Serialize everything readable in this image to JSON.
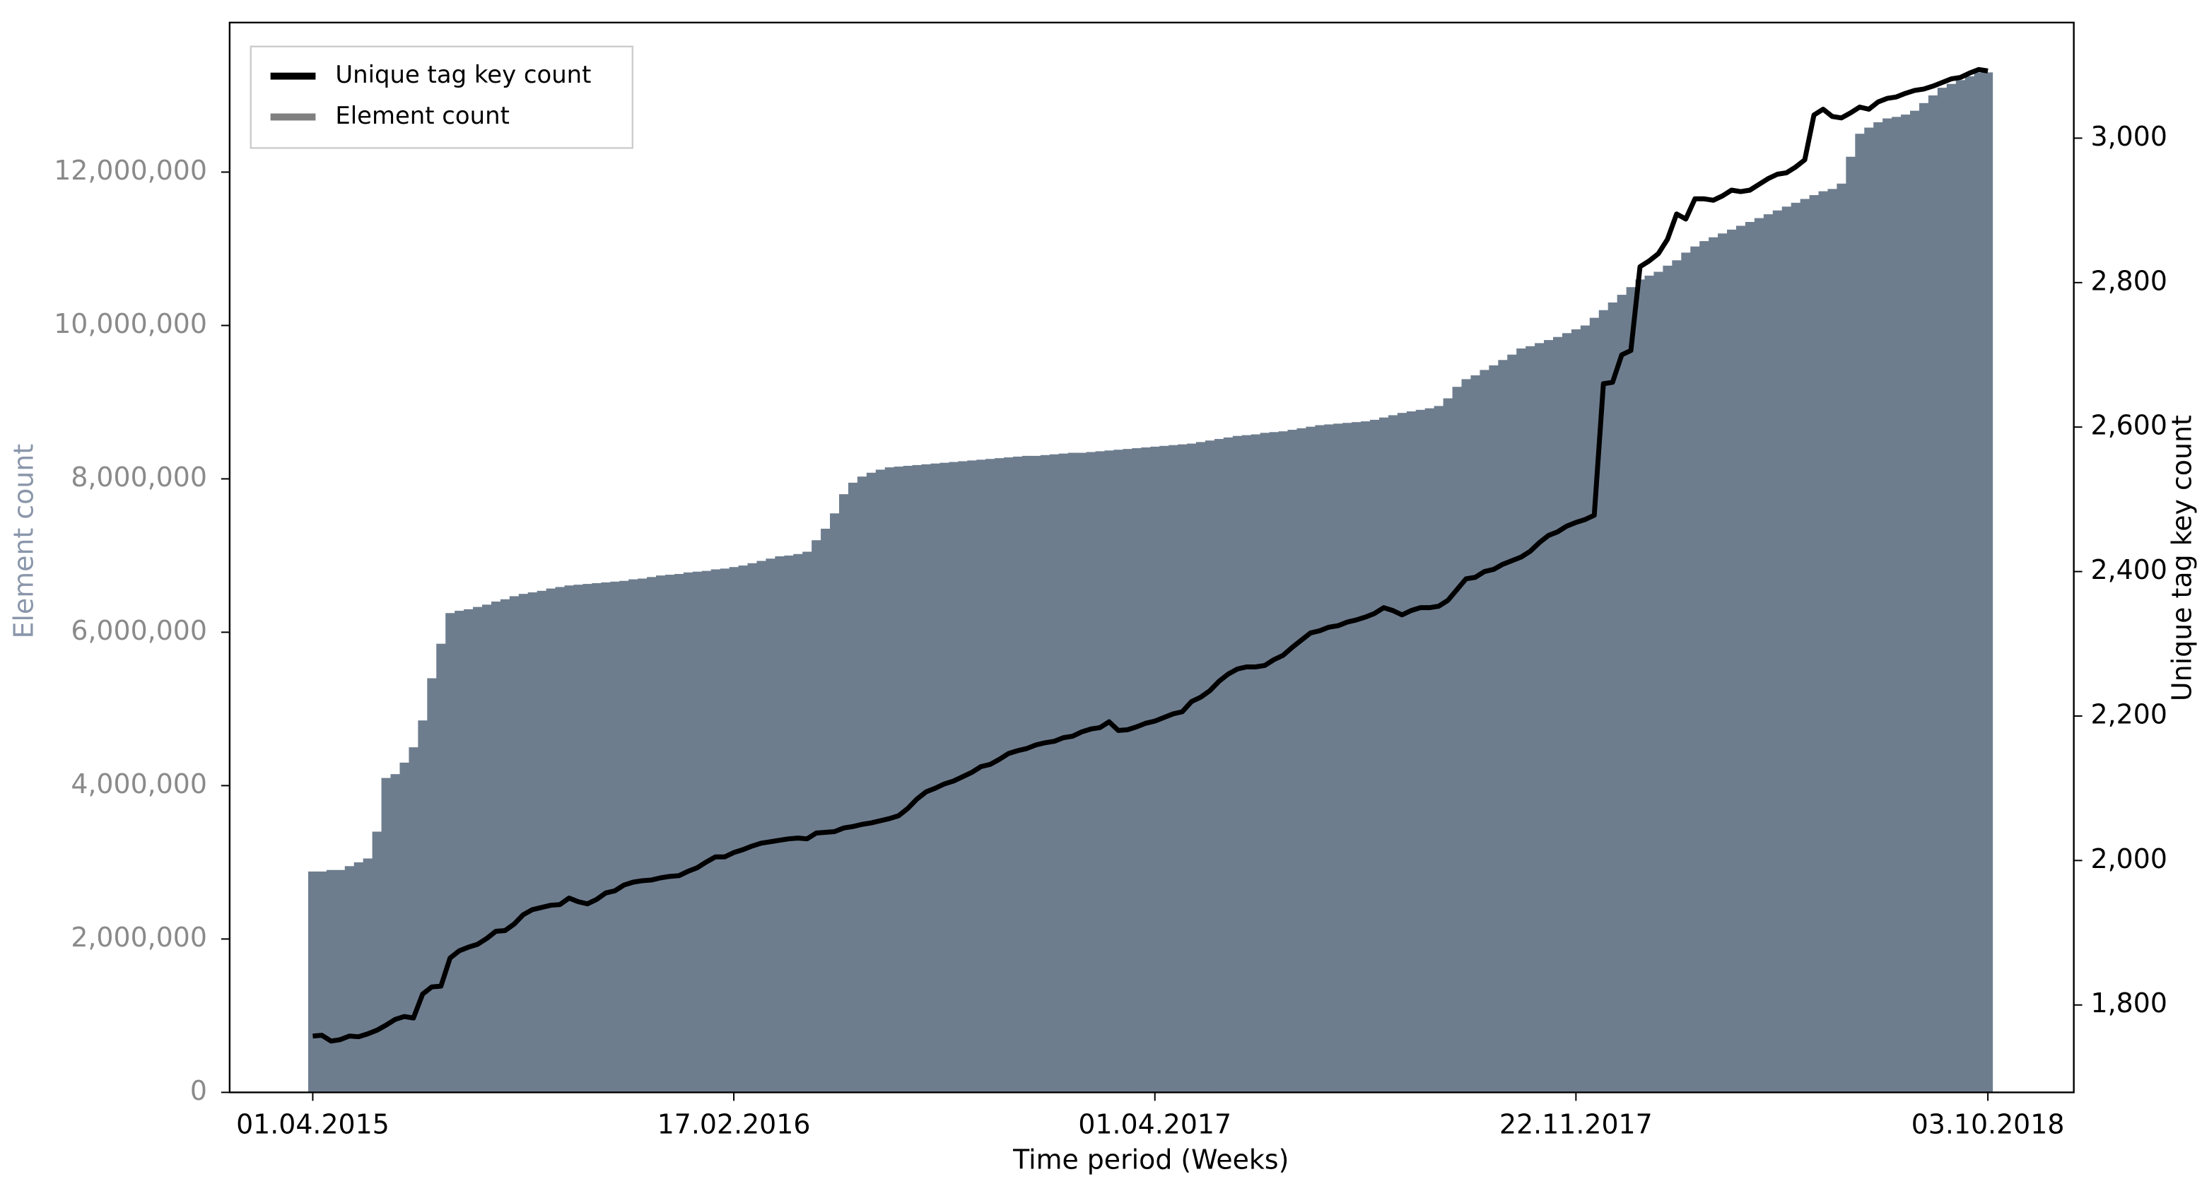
{
  "chart_data": {
    "type": "bar",
    "x_label": "Time period (Weeks)",
    "y_label": "Element count",
    "y2_label": "Unique tag key count",
    "categories": [
      "01.04.2015",
      null,
      null,
      null,
      null,
      null,
      null,
      null,
      null,
      null,
      null,
      null,
      null,
      null,
      null,
      null,
      null,
      null,
      null,
      null,
      null,
      null,
      null,
      null,
      null,
      null,
      null,
      null,
      null,
      null,
      null,
      null,
      null,
      null,
      null,
      null,
      null,
      null,
      null,
      null,
      null,
      null,
      null,
      null,
      null,
      null,
      "17.02.2016",
      null,
      null,
      null,
      null,
      null,
      null,
      null,
      null,
      null,
      null,
      null,
      null,
      null,
      null,
      null,
      null,
      null,
      null,
      null,
      null,
      null,
      null,
      null,
      null,
      null,
      null,
      null,
      null,
      null,
      null,
      null,
      null,
      null,
      null,
      null,
      null,
      null,
      null,
      null,
      null,
      null,
      null,
      null,
      null,
      null,
      "01.04.2017",
      null,
      null,
      null,
      null,
      null,
      null,
      null,
      null,
      null,
      null,
      null,
      null,
      null,
      null,
      null,
      null,
      null,
      null,
      null,
      null,
      null,
      null,
      null,
      null,
      null,
      null,
      null,
      null,
      null,
      null,
      null,
      null,
      null,
      null,
      null,
      null,
      null,
      null,
      null,
      null,
      null,
      null,
      null,
      null,
      null,
      "22.11.2017",
      null,
      null,
      null,
      null,
      null,
      null,
      null,
      null,
      null,
      null,
      null,
      null,
      null,
      null,
      null,
      null,
      null,
      null,
      null,
      null,
      null,
      null,
      null,
      null,
      null,
      null,
      null,
      null,
      null,
      null,
      null,
      null,
      null,
      null,
      null,
      null,
      null,
      null,
      null,
      null,
      null,
      null,
      null,
      null,
      "03.10.2018"
    ],
    "series": [
      {
        "name": "Unique tag key count",
        "type": "line",
        "axis": "y2",
        "color": "#000000",
        "values": [
          1757,
          1758,
          1750,
          1752,
          1757,
          1756,
          1760,
          1765,
          1772,
          1780,
          1784,
          1782,
          1815,
          1825,
          1826,
          1865,
          1875,
          1880,
          1884,
          1892,
          1902,
          1903,
          1912,
          1925,
          1932,
          1935,
          1938,
          1939,
          1948,
          1943,
          1940,
          1946,
          1955,
          1958,
          1966,
          1970,
          1972,
          1973,
          1976,
          1978,
          1979,
          1985,
          1990,
          1998,
          2005,
          2005,
          2011,
          2015,
          2020,
          2024,
          2026,
          2028,
          2030,
          2031,
          2030,
          2038,
          2039,
          2040,
          2045,
          2047,
          2050,
          2052,
          2055,
          2058,
          2062,
          2072,
          2085,
          2095,
          2100,
          2106,
          2110,
          2116,
          2122,
          2130,
          2133,
          2140,
          2148,
          2152,
          2155,
          2160,
          2163,
          2165,
          2170,
          2172,
          2178,
          2182,
          2184,
          2192,
          2180,
          2181,
          2185,
          2190,
          2193,
          2198,
          2203,
          2206,
          2220,
          2226,
          2235,
          2248,
          2258,
          2265,
          2268,
          2268,
          2270,
          2278,
          2284,
          2295,
          2305,
          2315,
          2318,
          2323,
          2325,
          2330,
          2333,
          2337,
          2342,
          2350,
          2346,
          2340,
          2346,
          2350,
          2350,
          2352,
          2360,
          2375,
          2390,
          2392,
          2400,
          2403,
          2410,
          2415,
          2420,
          2428,
          2440,
          2450,
          2455,
          2463,
          2468,
          2472,
          2478,
          2660,
          2662,
          2700,
          2706,
          2822,
          2830,
          2840,
          2860,
          2895,
          2888,
          2916,
          2916,
          2914,
          2920,
          2928,
          2926,
          2928,
          2936,
          2944,
          2950,
          2952,
          2960,
          2970,
          3032,
          3040,
          3030,
          3028,
          3035,
          3043,
          3040,
          3050,
          3055,
          3057,
          3062,
          3066,
          3068,
          3072,
          3077,
          3082,
          3084,
          3090,
          3095,
          3093
        ]
      },
      {
        "name": "Element count",
        "type": "bar",
        "axis": "y",
        "color": "#6e7d8e",
        "legend_color": "#808080",
        "values": [
          2880000,
          2880000,
          2900000,
          2900000,
          2950000,
          3000000,
          3050000,
          3400000,
          4100000,
          4150000,
          4300000,
          4500000,
          4850000,
          5400000,
          5850000,
          6250000,
          6280000,
          6300000,
          6330000,
          6360000,
          6400000,
          6430000,
          6470000,
          6500000,
          6520000,
          6540000,
          6570000,
          6590000,
          6610000,
          6620000,
          6630000,
          6640000,
          6650000,
          6660000,
          6670000,
          6690000,
          6700000,
          6720000,
          6740000,
          6750000,
          6760000,
          6780000,
          6790000,
          6800000,
          6820000,
          6830000,
          6850000,
          6870000,
          6900000,
          6930000,
          6960000,
          6990000,
          7000000,
          7020000,
          7050000,
          7200000,
          7350000,
          7550000,
          7800000,
          7950000,
          8030000,
          8080000,
          8120000,
          8150000,
          8160000,
          8170000,
          8180000,
          8190000,
          8200000,
          8210000,
          8220000,
          8230000,
          8240000,
          8250000,
          8260000,
          8270000,
          8280000,
          8290000,
          8300000,
          8300000,
          8310000,
          8320000,
          8330000,
          8340000,
          8340000,
          8350000,
          8360000,
          8370000,
          8380000,
          8390000,
          8400000,
          8410000,
          8420000,
          8430000,
          8440000,
          8450000,
          8460000,
          8480000,
          8500000,
          8520000,
          8540000,
          8560000,
          8570000,
          8580000,
          8600000,
          8610000,
          8620000,
          8640000,
          8660000,
          8680000,
          8700000,
          8710000,
          8720000,
          8730000,
          8740000,
          8750000,
          8770000,
          8800000,
          8830000,
          8860000,
          8880000,
          8900000,
          8920000,
          8950000,
          9050000,
          9200000,
          9300000,
          9350000,
          9420000,
          9480000,
          9550000,
          9620000,
          9700000,
          9730000,
          9770000,
          9810000,
          9850000,
          9900000,
          9950000,
          10000000,
          10100000,
          10200000,
          10300000,
          10400000,
          10500000,
          10600000,
          10650000,
          10700000,
          10780000,
          10850000,
          10950000,
          11030000,
          11100000,
          11150000,
          11200000,
          11250000,
          11300000,
          11350000,
          11400000,
          11450000,
          11500000,
          11550000,
          11600000,
          11650000,
          11700000,
          11750000,
          11780000,
          11850000,
          12200000,
          12500000,
          12580000,
          12650000,
          12700000,
          12720000,
          12750000,
          12800000,
          12900000,
          13000000,
          13100000,
          13150000,
          13200000,
          13250000,
          13300000,
          13300000
        ]
      }
    ],
    "ylim": [
      0,
      13950000
    ],
    "yticks": [
      0,
      {
        "value": 2000000,
        "label": "2,000,000"
      },
      {
        "value": 4000000,
        "label": "4,000,000"
      },
      {
        "value": 6000000,
        "label": "6,000,000"
      },
      {
        "value": 8000000,
        "label": "8,000,000"
      },
      {
        "value": 10000000,
        "label": "10,000,000"
      },
      {
        "value": 12000000,
        "label": "12,000,000"
      }
    ],
    "y2lim": [
      1679,
      3160
    ],
    "y2ticks": [
      {
        "value": 1800,
        "label": "1,800"
      },
      {
        "value": 2000,
        "label": "2,000"
      },
      {
        "value": 2200,
        "label": "2,200"
      },
      {
        "value": 2400,
        "label": "2,400"
      },
      {
        "value": 2600,
        "label": "2,600"
      },
      {
        "value": 2800,
        "label": "2,800"
      },
      {
        "value": 3000,
        "label": "3,000"
      }
    ],
    "legend": "upper left",
    "grid": false
  }
}
